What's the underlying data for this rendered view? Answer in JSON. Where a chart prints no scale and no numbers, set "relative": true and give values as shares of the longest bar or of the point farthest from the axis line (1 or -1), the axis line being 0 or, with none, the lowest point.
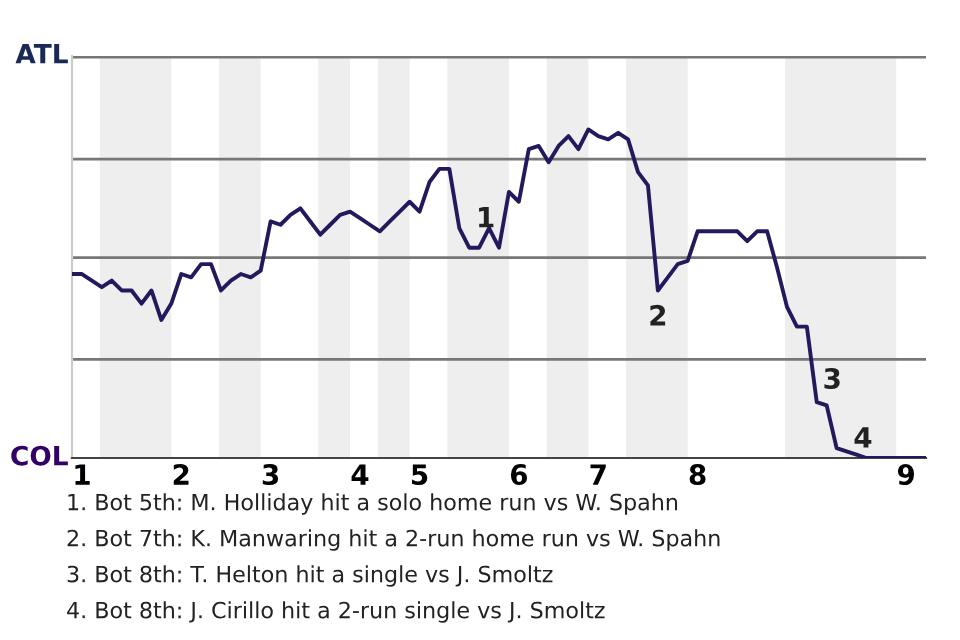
{
  "chart_data": {
    "type": "line",
    "relative": true,
    "categories": [
      null,
      "1",
      null,
      null,
      null,
      null,
      null,
      null,
      null,
      null,
      null,
      "2",
      null,
      null,
      null,
      null,
      null,
      null,
      null,
      null,
      "3",
      null,
      null,
      null,
      null,
      null,
      null,
      null,
      null,
      "4",
      null,
      null,
      null,
      null,
      null,
      "5",
      null,
      null,
      null,
      null,
      null,
      null,
      null,
      null,
      null,
      "6",
      null,
      null,
      null,
      null,
      null,
      null,
      null,
      "7",
      null,
      null,
      null,
      null,
      null,
      null,
      null,
      null,
      null,
      "8",
      null,
      null,
      null,
      null,
      null,
      null,
      null,
      null,
      null,
      null,
      null,
      null,
      null,
      null,
      null,
      null,
      null,
      null,
      null,
      null,
      "9",
      null,
      null
    ],
    "marker": "none",
    "line_style": "solid",
    "ref_lines": [
      {
        "axis": "y",
        "value": 0.3,
        "color": "#777777"
      },
      {
        "axis": "y",
        "value": 0.61,
        "color": "#777777"
      },
      {
        "axis": "y",
        "value": 0.91,
        "color": "#777777"
      },
      {
        "axis": "y",
        "value": 1.22,
        "color": "#777777"
      }
    ],
    "series": [
      {
        "color": "#24195c",
        "values": [
          0.56,
          0.56,
          0.54,
          0.52,
          0.54,
          0.51,
          0.51,
          0.47,
          0.51,
          0.42,
          0.47,
          0.56,
          0.55,
          0.59,
          0.59,
          0.51,
          0.54,
          0.56,
          0.55,
          0.57,
          0.72,
          0.71,
          0.74,
          0.76,
          0.72,
          0.68,
          0.71,
          0.74,
          0.75,
          0.73,
          0.71,
          0.69,
          0.72,
          0.75,
          0.78,
          0.75,
          0.84,
          0.88,
          0.88,
          0.7,
          0.64,
          0.64,
          0.7,
          0.64,
          0.81,
          0.78,
          0.94,
          0.95,
          0.9,
          0.95,
          0.98,
          0.94,
          1,
          0.98,
          0.97,
          0.99,
          0.97,
          0.87,
          0.83,
          0.51,
          0.55,
          0.59,
          0.6,
          0.69,
          0.69,
          0.69,
          0.69,
          0.69,
          0.66,
          0.69,
          0.69,
          0.58,
          0.46,
          0.4,
          0.4,
          0.17,
          0.16,
          0.03,
          0.02,
          0.01,
          0,
          0,
          0,
          0,
          0,
          0,
          0
        ]
      }
    ],
    "annotations": [
      "ATL",
      "COL",
      {
        "text": "1",
        "y": 0.7
      },
      {
        "text": "2",
        "y": 0.51
      },
      {
        "text": "3",
        "y": 0.16
      },
      {
        "text": "4",
        "y": 0.03
      },
      "1. Bot 5th: M. Holliday hit a solo home run vs W. Spahn",
      "2. Bot 7th: K. Manwaring hit a 2-run home run vs W. Spahn",
      "3. Bot 8th: T. Helton hit a single vs J. Smoltz",
      "4. Bot 8th: J. Cirillo hit a 2-run single vs J. Smoltz"
    ]
  }
}
